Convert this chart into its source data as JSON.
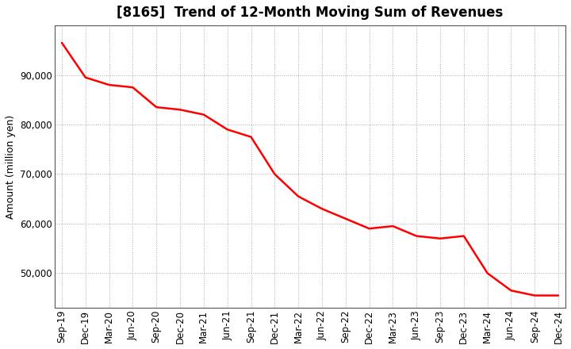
{
  "title": "[8165]  Trend of 12-Month Moving Sum of Revenues",
  "ylabel": "Amount (million yen)",
  "line_color": "#FF0000",
  "background_color": "#FFFFFF",
  "grid_color": "#AAAAAA",
  "xlabels": [
    "Sep-19",
    "Dec-19",
    "Mar-20",
    "Jun-20",
    "Sep-20",
    "Dec-20",
    "Mar-21",
    "Jun-21",
    "Sep-21",
    "Dec-21",
    "Mar-22",
    "Jun-22",
    "Sep-22",
    "Dec-22",
    "Mar-23",
    "Jun-23",
    "Sep-23",
    "Dec-23",
    "Mar-24",
    "Jun-24",
    "Sep-24",
    "Dec-24"
  ],
  "values": [
    96500,
    89500,
    88000,
    87500,
    83500,
    83000,
    82000,
    79000,
    77500,
    70000,
    65500,
    63000,
    61000,
    59000,
    59500,
    57500,
    57000,
    57500,
    50000,
    46500,
    45500,
    45500
  ],
  "ylim": [
    43000,
    100000
  ],
  "yticks": [
    50000,
    60000,
    70000,
    80000,
    90000
  ],
  "title_fontsize": 12,
  "label_fontsize": 9,
  "tick_fontsize": 8.5
}
